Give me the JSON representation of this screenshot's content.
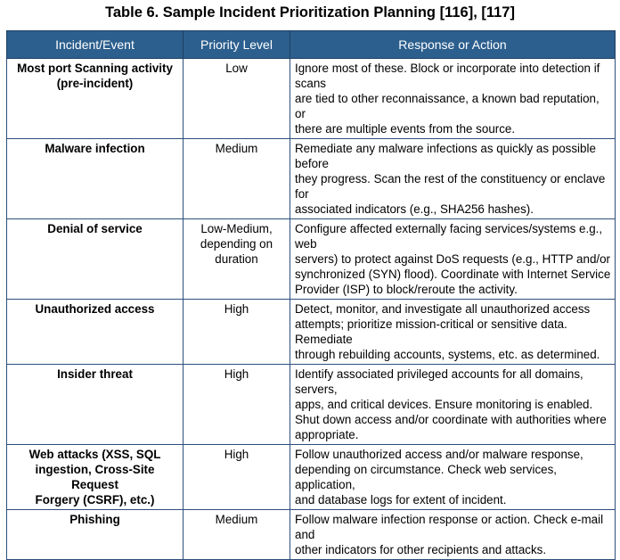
{
  "caption": "Table 6. Sample Incident Prioritization Planning [116], [117]",
  "headers": [
    "Incident/Event",
    "Priority Level",
    "Response or Action"
  ],
  "rows": [
    {
      "event": [
        "Most port Scanning activity",
        "(pre-incident)"
      ],
      "priority": [
        "Low"
      ],
      "response": [
        "Ignore most of these. Block or incorporate into detection if scans",
        "are tied to other reconnaissance, a known bad reputation, or",
        "there are multiple events from the source."
      ]
    },
    {
      "event": [
        "Malware infection"
      ],
      "priority": [
        "Medium"
      ],
      "response": [
        "Remediate any malware infections as quickly as possible before",
        "they progress. Scan the rest of the constituency or enclave for",
        "associated indicators (e.g., SHA256 hashes)."
      ]
    },
    {
      "event": [
        "Denial of service"
      ],
      "priority": [
        "Low-Medium,",
        "depending on",
        "duration"
      ],
      "response": [
        "Configure affected externally facing services/systems e.g., web",
        "servers) to protect against DoS requests (e.g., HTTP and/or",
        "synchronized (SYN) flood). Coordinate with Internet Service",
        "Provider (ISP) to block/reroute the activity."
      ]
    },
    {
      "event": [
        "Unauthorized access"
      ],
      "priority": [
        "High"
      ],
      "response": [
        "Detect, monitor, and investigate all unauthorized access",
        "attempts; prioritize mission-critical or sensitive data. Remediate",
        "through rebuilding accounts, systems, etc. as determined."
      ]
    },
    {
      "event": [
        "Insider threat"
      ],
      "priority": [
        "High"
      ],
      "response": [
        "Identify associated privileged accounts for all domains, servers,",
        "apps, and critical devices. Ensure monitoring is enabled.",
        "Shut down access and/or coordinate with authorities where",
        "appropriate."
      ]
    },
    {
      "event": [
        "Web attacks (XSS, SQL",
        "ingestion, Cross-Site Request",
        "Forgery (CSRF), etc.)"
      ],
      "priority": [
        "High"
      ],
      "response": [
        "Follow unauthorized access and/or malware response,",
        "depending on circumstance. Check web services, application,",
        "and database logs for extent of incident."
      ]
    },
    {
      "event": [
        "Phishing"
      ],
      "priority": [
        "Medium"
      ],
      "response": [
        "Follow malware infection response or action. Check e-mail and",
        "other indicators for other recipients and attacks."
      ]
    }
  ]
}
